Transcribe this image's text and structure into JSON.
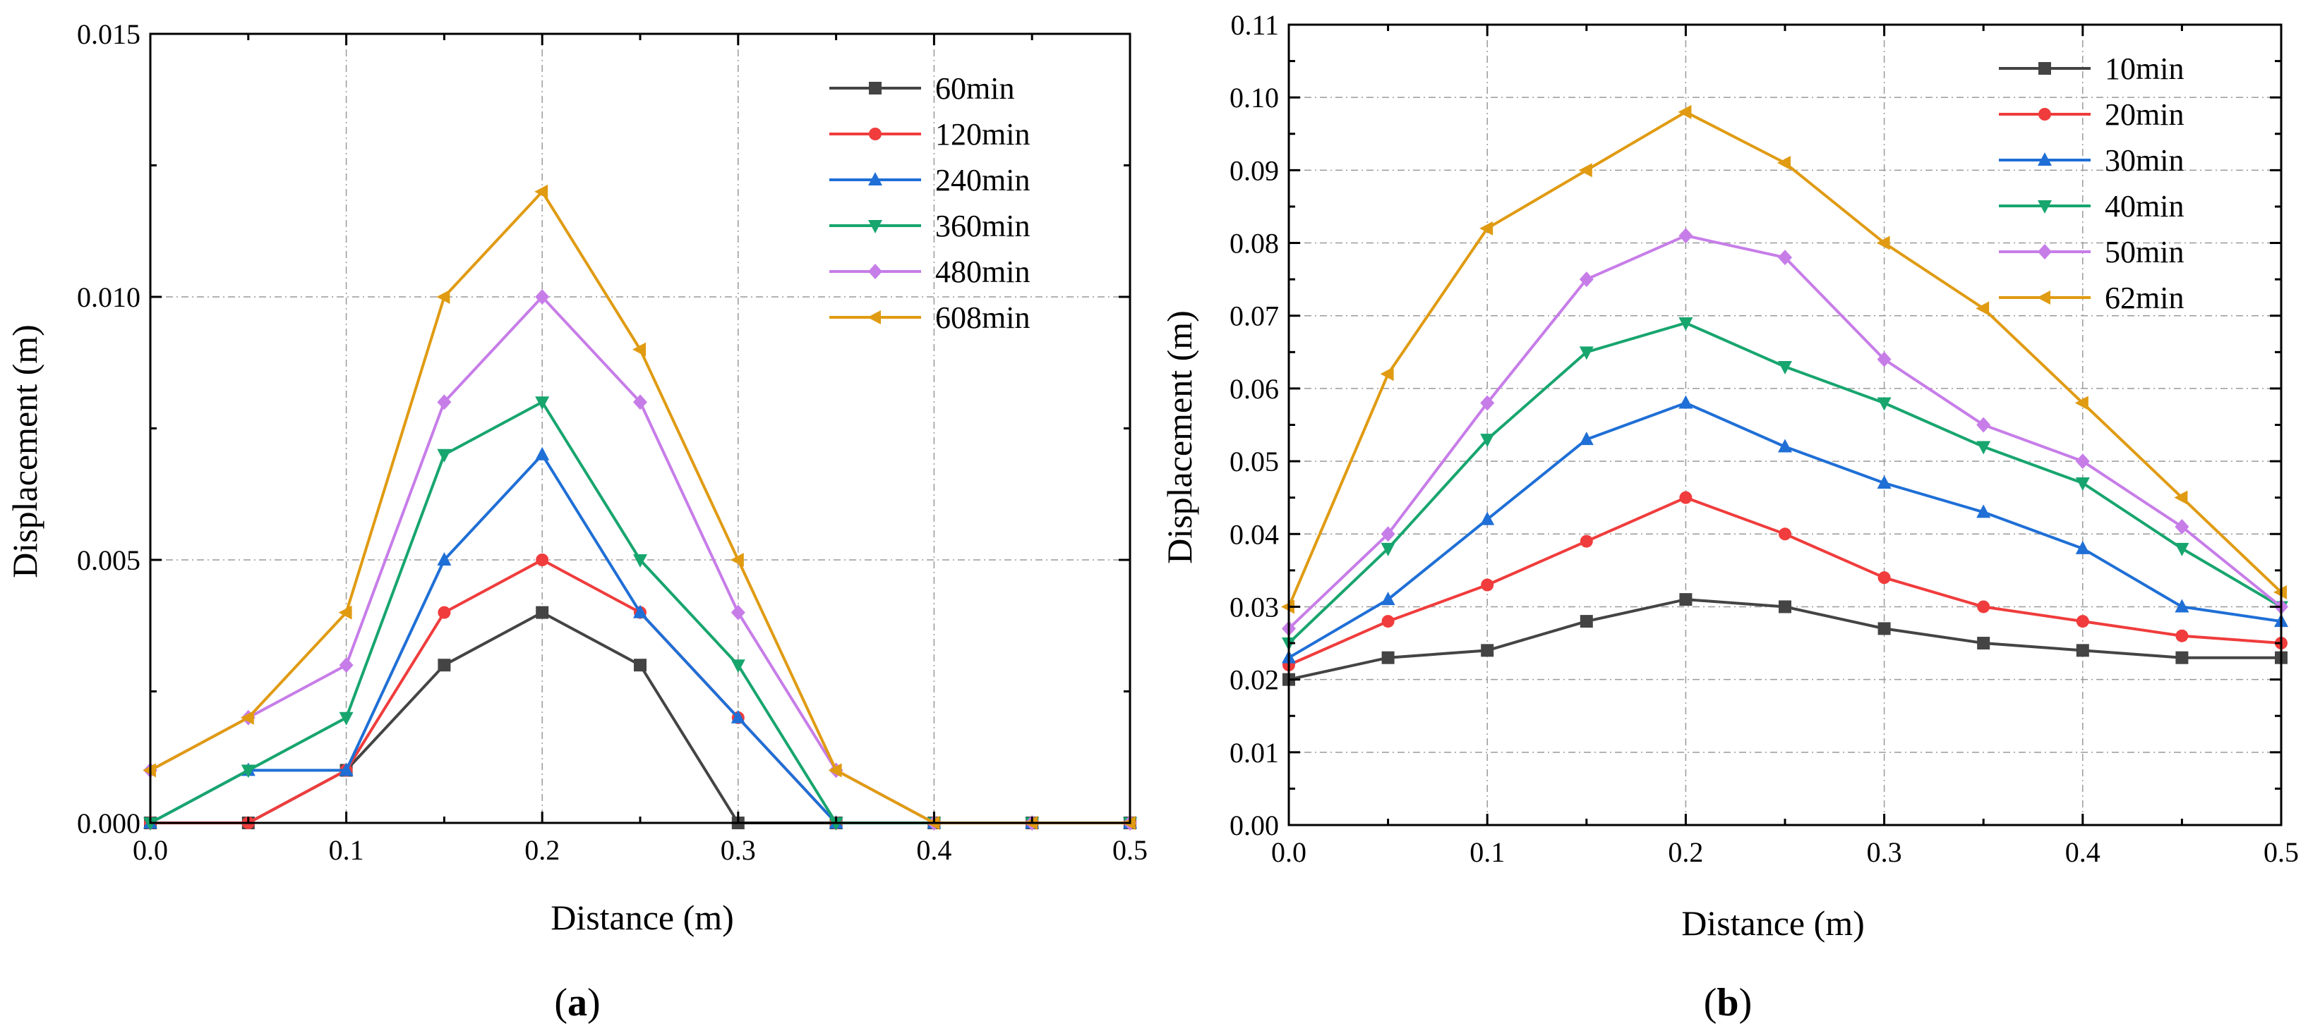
{
  "chart_data": [
    {
      "type": "line",
      "panel_label": "a",
      "xlabel": "Distance (m)",
      "ylabel": "Displacement (m)",
      "xlim": [
        0,
        0.5
      ],
      "ylim": [
        0,
        0.015
      ],
      "xticks": [
        "0.0",
        "0.1",
        "0.2",
        "0.3",
        "0.4",
        "0.5"
      ],
      "yticks": [
        "0.000",
        "0.005",
        "0.010",
        "0.015"
      ],
      "grid": true,
      "legend_position": "top-right",
      "x": [
        0,
        0.05,
        0.1,
        0.15,
        0.2,
        0.25,
        0.3,
        0.35,
        0.4,
        0.45,
        0.5
      ],
      "series": [
        {
          "name": "60min",
          "color": "#444444",
          "marker": "square",
          "values": [
            0,
            0,
            0.001,
            0.003,
            0.004,
            0.003,
            0,
            0,
            0,
            0,
            0
          ]
        },
        {
          "name": "120min",
          "color": "#f03c3c",
          "marker": "circle",
          "values": [
            0,
            0,
            0.001,
            0.004,
            0.005,
            0.004,
            0.002,
            0,
            0,
            0,
            0
          ]
        },
        {
          "name": "240min",
          "color": "#1f6fd6",
          "marker": "triangle-up",
          "values": [
            0,
            0.001,
            0.001,
            0.005,
            0.007,
            0.004,
            0.002,
            0,
            0,
            0,
            0
          ]
        },
        {
          "name": "360min",
          "color": "#17a56e",
          "marker": "triangle-down",
          "values": [
            0,
            0.001,
            0.002,
            0.007,
            0.008,
            0.005,
            0.003,
            0,
            0,
            0,
            0
          ]
        },
        {
          "name": "480min",
          "color": "#c77de8",
          "marker": "diamond",
          "values": [
            0.001,
            0.002,
            0.003,
            0.008,
            0.01,
            0.008,
            0.004,
            0.001,
            0,
            0,
            0
          ]
        },
        {
          "name": "608min",
          "color": "#e09b12",
          "marker": "triangle-left",
          "values": [
            0.001,
            0.002,
            0.004,
            0.01,
            0.012,
            0.009,
            0.005,
            0.001,
            0,
            0,
            0
          ]
        }
      ]
    },
    {
      "type": "line",
      "panel_label": "b",
      "xlabel": "Distance (m)",
      "ylabel": "Displacement (m)",
      "xlim": [
        0,
        0.5
      ],
      "ylim": [
        0,
        0.11
      ],
      "xticks": [
        "0.0",
        "0.1",
        "0.2",
        "0.3",
        "0.4",
        "0.5"
      ],
      "yticks": [
        "0.00",
        "0.01",
        "0.02",
        "0.03",
        "0.04",
        "0.05",
        "0.06",
        "0.07",
        "0.08",
        "0.09",
        "0.10",
        "0.11"
      ],
      "grid": true,
      "legend_position": "top-right",
      "x": [
        0,
        0.05,
        0.1,
        0.15,
        0.2,
        0.25,
        0.3,
        0.35,
        0.4,
        0.45,
        0.5
      ],
      "series": [
        {
          "name": "10min",
          "color": "#444444",
          "marker": "square",
          "values": [
            0.02,
            0.023,
            0.024,
            0.028,
            0.031,
            0.03,
            0.027,
            0.025,
            0.024,
            0.023,
            0.023
          ]
        },
        {
          "name": "20min",
          "color": "#f03c3c",
          "marker": "circle",
          "values": [
            0.022,
            0.028,
            0.033,
            0.039,
            0.045,
            0.04,
            0.034,
            0.03,
            0.028,
            0.026,
            0.025
          ]
        },
        {
          "name": "30min",
          "color": "#1f6fd6",
          "marker": "triangle-up",
          "values": [
            0.023,
            0.031,
            0.042,
            0.053,
            0.058,
            0.052,
            0.047,
            0.043,
            0.038,
            0.03,
            0.028
          ]
        },
        {
          "name": "40min",
          "color": "#17a56e",
          "marker": "triangle-down",
          "values": [
            0.025,
            0.038,
            0.053,
            0.065,
            0.069,
            0.063,
            0.058,
            0.052,
            0.047,
            0.038,
            0.03
          ]
        },
        {
          "name": "50min",
          "color": "#c77de8",
          "marker": "diamond",
          "values": [
            0.027,
            0.04,
            0.058,
            0.075,
            0.081,
            0.078,
            0.064,
            0.055,
            0.05,
            0.041,
            0.03
          ]
        },
        {
          "name": "62min",
          "color": "#e09b12",
          "marker": "triangle-left",
          "values": [
            0.03,
            0.062,
            0.082,
            0.09,
            0.098,
            0.091,
            0.08,
            0.071,
            0.058,
            0.045,
            0.032
          ]
        }
      ]
    }
  ]
}
